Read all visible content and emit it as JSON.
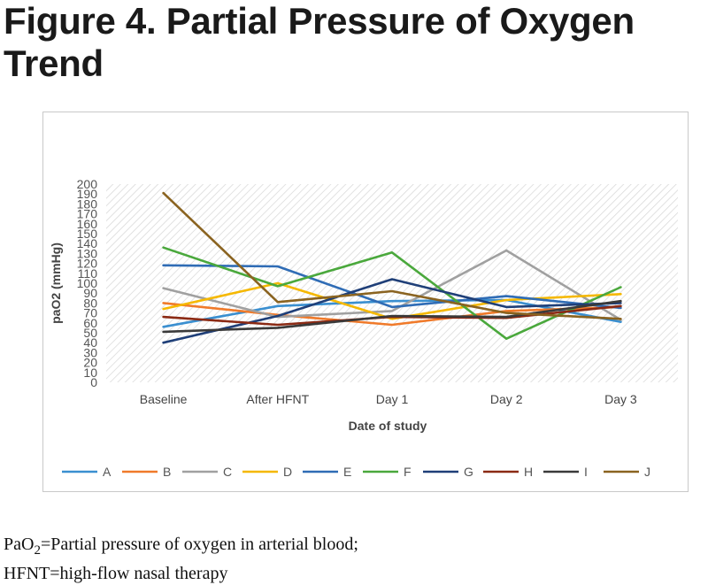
{
  "title": "Figure 4. Partial Pressure of Oxygen Trend",
  "caption": {
    "line1_prefix": "PaO",
    "line1_sub": "2",
    "line1_rest": "=Partial pressure of oxygen in arterial blood;",
    "line2": "HFNT=high-flow nasal therapy"
  },
  "chart_data": {
    "type": "line",
    "title": "",
    "xlabel": "Date of study",
    "ylabel": "paO2 (mmHg)",
    "ylim": [
      0,
      200
    ],
    "ytick_step": 10,
    "grid": "hatched plot area",
    "legend_position": "bottom",
    "categories": [
      "Baseline",
      "After HFNT",
      "Day 1",
      "Day 2",
      "Day 3"
    ],
    "series": [
      {
        "name": "A",
        "color": "#3a8fd0",
        "values": [
          56,
          77,
          82,
          83,
          61
        ]
      },
      {
        "name": "B",
        "color": "#f07a2a",
        "values": [
          80,
          68,
          58,
          72,
          76
        ]
      },
      {
        "name": "C",
        "color": "#a0a0a0",
        "values": [
          95,
          66,
          72,
          133,
          63
        ]
      },
      {
        "name": "D",
        "color": "#f5b800",
        "values": [
          74,
          100,
          64,
          83,
          89
        ]
      },
      {
        "name": "E",
        "color": "#2f6cb5",
        "values": [
          118,
          117,
          76,
          87,
          75
        ]
      },
      {
        "name": "F",
        "color": "#4aa83c",
        "values": [
          136,
          97,
          131,
          44,
          96
        ]
      },
      {
        "name": "G",
        "color": "#1f3f78",
        "values": [
          40,
          67,
          104,
          76,
          80
        ]
      },
      {
        "name": "H",
        "color": "#8b2a14",
        "values": [
          66,
          58,
          66,
          65,
          77
        ]
      },
      {
        "name": "I",
        "color": "#3a3a3a",
        "values": [
          51,
          55,
          67,
          66,
          82
        ]
      },
      {
        "name": "J",
        "color": "#8a6320",
        "values": [
          191,
          81,
          92,
          70,
          64
        ]
      }
    ]
  }
}
